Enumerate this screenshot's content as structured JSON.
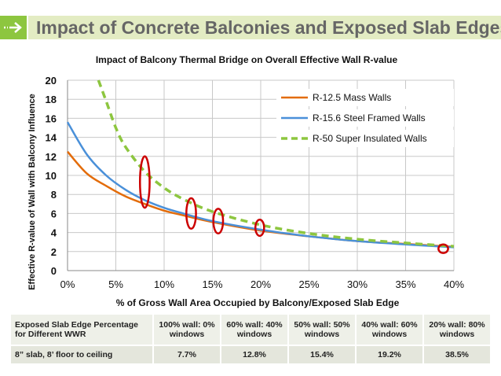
{
  "header": {
    "title": "Impact of Concrete Balconies and Exposed Slab Edges",
    "icon": "arrow-right-icon",
    "accent_color": "#8dc63f",
    "bar_color": "#e3ecc3"
  },
  "chart_data": {
    "type": "line",
    "title": "Impact of Balcony Thermal Bridge on Overall Effective Wall R-value",
    "xlabel": "% of Gross Wall Area Occupied by Balcony/Exposed Slab Edge",
    "ylabel": "Effective R-value of Wall with Balcony Influence",
    "xlim": [
      0,
      40
    ],
    "ylim": [
      0,
      20
    ],
    "x_ticks": [
      0,
      5,
      10,
      15,
      20,
      25,
      30,
      35,
      40
    ],
    "x_tick_labels": [
      "0%",
      "5%",
      "10%",
      "15%",
      "20%",
      "25%",
      "30%",
      "35%",
      "40%"
    ],
    "y_ticks": [
      0,
      2,
      4,
      6,
      8,
      10,
      12,
      14,
      16,
      18,
      20
    ],
    "grid": true,
    "legend_position": "top-right",
    "x": [
      0,
      2,
      4,
      6,
      8,
      10,
      12,
      15,
      20,
      25,
      30,
      35,
      40
    ],
    "series": [
      {
        "name": "R-12.5 Mass Walls",
        "color": "#e36c0a",
        "style": "solid",
        "values": [
          12.5,
          10.2,
          8.9,
          7.8,
          7.0,
          6.3,
          5.8,
          5.1,
          4.2,
          3.6,
          3.1,
          2.8,
          2.5
        ]
      },
      {
        "name": "R-15.6 Steel Framed Walls",
        "color": "#4a90d9",
        "style": "solid",
        "values": [
          15.6,
          12.2,
          10.0,
          8.5,
          7.4,
          6.6,
          6.0,
          5.2,
          4.3,
          3.6,
          3.1,
          2.75,
          2.45
        ]
      },
      {
        "name": "R-50 Super Insulated Walls",
        "color": "#8dc63f",
        "style": "dashed",
        "x": [
          3.2,
          4,
          5,
          6,
          8,
          10,
          12,
          15,
          20,
          25,
          30,
          35,
          40
        ],
        "values": [
          20,
          17.8,
          15.0,
          13.0,
          10.4,
          8.7,
          7.5,
          6.2,
          4.8,
          3.9,
          3.3,
          2.9,
          2.55
        ]
      }
    ],
    "annotations": [
      {
        "shape": "ellipse",
        "color": "#cc0000",
        "cx": 8.0,
        "cy": 9.3,
        "rx": 0.5,
        "ry": 2.7
      },
      {
        "shape": "ellipse",
        "color": "#cc0000",
        "cx": 12.8,
        "cy": 6.0,
        "rx": 0.5,
        "ry": 1.6
      },
      {
        "shape": "ellipse",
        "color": "#cc0000",
        "cx": 15.6,
        "cy": 5.2,
        "rx": 0.5,
        "ry": 1.3
      },
      {
        "shape": "ellipse",
        "color": "#cc0000",
        "cx": 19.9,
        "cy": 4.5,
        "rx": 0.45,
        "ry": 0.85
      },
      {
        "shape": "ellipse",
        "color": "#cc0000",
        "cx": 38.9,
        "cy": 2.3,
        "rx": 0.5,
        "ry": 0.45
      }
    ]
  },
  "table": {
    "header_row": [
      "Exposed Slab Edge Percentage for Different WWR",
      "100% wall: 0% windows",
      "60% wall: 40% windows",
      "50% wall: 50% windows",
      "40% wall: 60% windows",
      "20% wall: 80% windows"
    ],
    "data_row": [
      "8” slab, 8’ floor to ceiling",
      "7.7%",
      "12.8%",
      "15.4%",
      "19.2%",
      "38.5%"
    ]
  }
}
